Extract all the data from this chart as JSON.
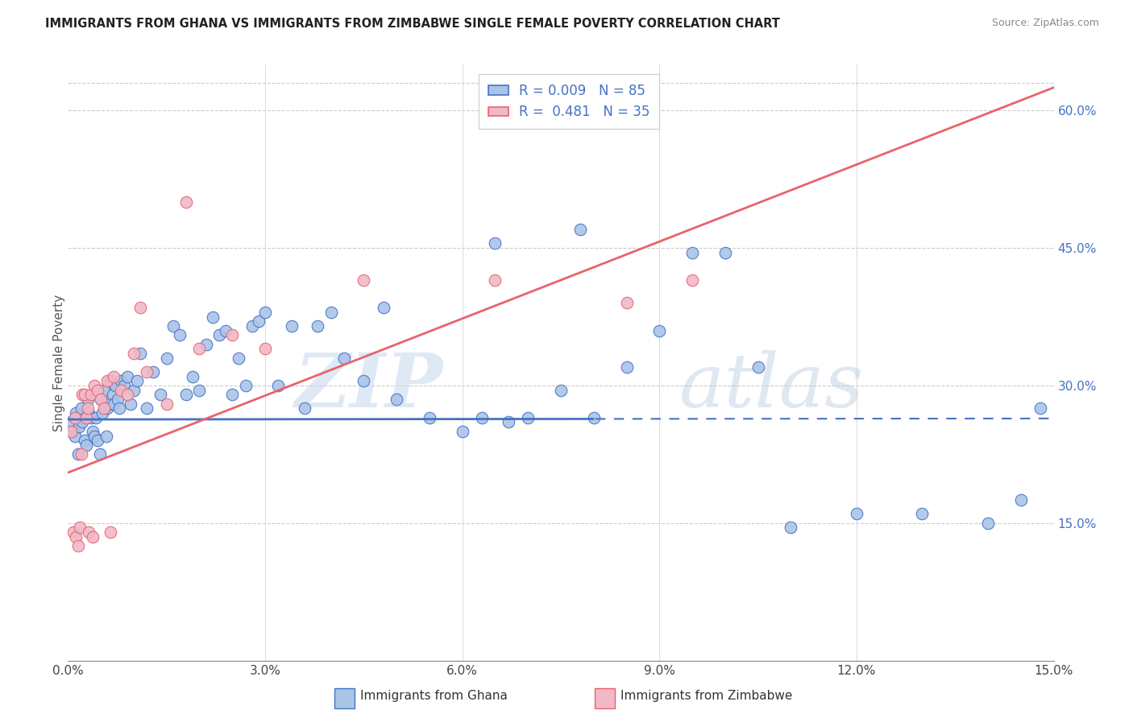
{
  "title": "IMMIGRANTS FROM GHANA VS IMMIGRANTS FROM ZIMBABWE SINGLE FEMALE POVERTY CORRELATION CHART",
  "source": "Source: ZipAtlas.com",
  "ylabel": "Single Female Poverty",
  "x_tick_labels": [
    "0.0%",
    "3.0%",
    "6.0%",
    "9.0%",
    "12.0%",
    "15.0%"
  ],
  "x_tick_vals": [
    0.0,
    3.0,
    6.0,
    9.0,
    12.0,
    15.0
  ],
  "y_tick_labels": [
    "15.0%",
    "30.0%",
    "45.0%",
    "60.0%"
  ],
  "y_tick_vals": [
    15.0,
    30.0,
    45.0,
    60.0
  ],
  "xlim": [
    0,
    15
  ],
  "ylim": [
    0,
    65
  ],
  "R_ghana": 0.009,
  "N_ghana": 85,
  "R_zimbabwe": 0.481,
  "N_zimbabwe": 35,
  "color_ghana_fill": "#aac4e8",
  "color_zimbabwe_fill": "#f0b8c8",
  "color_ghana_line": "#4472C4",
  "color_zimbabwe_line": "#E8636A",
  "color_legend_text": "#4472C4",
  "watermark_zip": "ZIP",
  "watermark_atlas": "atlas",
  "ghana_line_y_intercept": 26.3,
  "ghana_line_slope": 0.007,
  "ghana_line_dash_start": 8.0,
  "zimbabwe_line_y_at_0": 20.5,
  "zimbabwe_line_y_at_15": 62.5,
  "ghana_x": [
    0.05,
    0.08,
    0.1,
    0.12,
    0.15,
    0.17,
    0.2,
    0.22,
    0.25,
    0.28,
    0.3,
    0.32,
    0.35,
    0.38,
    0.4,
    0.42,
    0.45,
    0.48,
    0.5,
    0.52,
    0.55,
    0.58,
    0.6,
    0.62,
    0.65,
    0.68,
    0.7,
    0.72,
    0.75,
    0.78,
    0.8,
    0.85,
    0.9,
    0.95,
    1.0,
    1.05,
    1.1,
    1.2,
    1.3,
    1.4,
    1.5,
    1.6,
    1.7,
    1.8,
    1.9,
    2.0,
    2.1,
    2.2,
    2.3,
    2.4,
    2.5,
    2.6,
    2.7,
    2.8,
    2.9,
    3.0,
    3.2,
    3.4,
    3.6,
    3.8,
    4.0,
    4.2,
    4.5,
    4.8,
    5.0,
    5.5,
    6.0,
    6.3,
    6.7,
    7.0,
    7.5,
    8.0,
    8.5,
    9.0,
    9.5,
    10.0,
    10.5,
    11.0,
    12.0,
    13.0,
    14.0,
    14.5,
    14.8,
    7.8,
    6.5
  ],
  "ghana_y": [
    26.0,
    25.0,
    24.5,
    27.0,
    22.5,
    25.5,
    27.5,
    26.0,
    24.0,
    23.5,
    28.5,
    27.0,
    26.5,
    25.0,
    24.5,
    26.5,
    24.0,
    22.5,
    28.5,
    27.0,
    29.5,
    24.5,
    27.5,
    28.0,
    30.5,
    29.0,
    28.0,
    30.0,
    28.5,
    27.5,
    30.5,
    30.0,
    31.0,
    28.0,
    29.5,
    30.5,
    33.5,
    27.5,
    31.5,
    29.0,
    33.0,
    36.5,
    35.5,
    29.0,
    31.0,
    29.5,
    34.5,
    37.5,
    35.5,
    36.0,
    29.0,
    33.0,
    30.0,
    36.5,
    37.0,
    38.0,
    30.0,
    36.5,
    27.5,
    36.5,
    38.0,
    33.0,
    30.5,
    38.5,
    28.5,
    26.5,
    25.0,
    26.5,
    26.0,
    26.5,
    29.5,
    26.5,
    32.0,
    36.0,
    44.5,
    44.5,
    32.0,
    14.5,
    16.0,
    16.0,
    15.0,
    17.5,
    27.5,
    47.0,
    45.5
  ],
  "zimbabwe_x": [
    0.05,
    0.08,
    0.1,
    0.12,
    0.15,
    0.18,
    0.2,
    0.22,
    0.25,
    0.28,
    0.3,
    0.32,
    0.35,
    0.38,
    0.4,
    0.45,
    0.5,
    0.55,
    0.6,
    0.65,
    0.7,
    0.8,
    0.9,
    1.0,
    1.1,
    1.2,
    1.5,
    1.8,
    2.0,
    2.5,
    3.0,
    4.5,
    6.5,
    8.5,
    9.5
  ],
  "zimbabwe_y": [
    25.0,
    14.0,
    26.5,
    13.5,
    12.5,
    14.5,
    22.5,
    29.0,
    29.0,
    26.5,
    27.5,
    14.0,
    29.0,
    13.5,
    30.0,
    29.5,
    28.5,
    27.5,
    30.5,
    14.0,
    31.0,
    29.5,
    29.0,
    33.5,
    38.5,
    31.5,
    28.0,
    50.0,
    34.0,
    35.5,
    34.0,
    41.5,
    41.5,
    39.0,
    41.5
  ]
}
